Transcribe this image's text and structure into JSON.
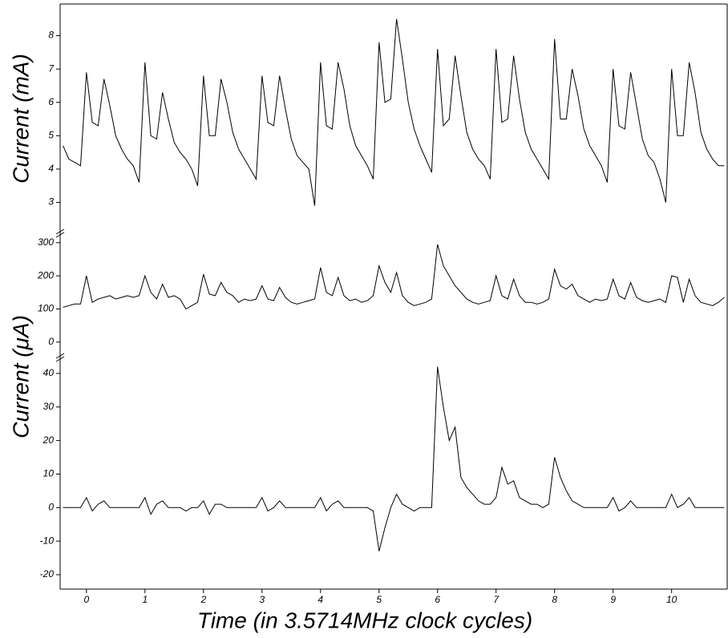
{
  "chart_data": [
    {
      "type": "line",
      "ylabel": "Current (mA)",
      "xlim": [
        -0.45,
        10.95
      ],
      "ylim": [
        2.1,
        8.95
      ],
      "yticks": [
        3,
        4,
        5,
        6,
        7,
        8
      ],
      "x": [
        -0.4,
        -0.3,
        -0.2,
        -0.1,
        0,
        0.1,
        0.2,
        0.3,
        0.4,
        0.5,
        0.6,
        0.7,
        0.8,
        0.9,
        1,
        1.1,
        1.2,
        1.3,
        1.4,
        1.5,
        1.6,
        1.7,
        1.8,
        1.9,
        2,
        2.1,
        2.2,
        2.3,
        2.4,
        2.5,
        2.6,
        2.7,
        2.8,
        2.9,
        3,
        3.1,
        3.2,
        3.3,
        3.4,
        3.5,
        3.6,
        3.7,
        3.8,
        3.9,
        4,
        4.1,
        4.2,
        4.3,
        4.4,
        4.5,
        4.6,
        4.7,
        4.8,
        4.9,
        5,
        5.1,
        5.2,
        5.3,
        5.4,
        5.5,
        5.6,
        5.7,
        5.8,
        5.9,
        6,
        6.1,
        6.2,
        6.3,
        6.4,
        6.5,
        6.6,
        6.7,
        6.8,
        6.9,
        7,
        7.1,
        7.2,
        7.3,
        7.4,
        7.5,
        7.6,
        7.7,
        7.8,
        7.9,
        8,
        8.1,
        8.2,
        8.3,
        8.4,
        8.5,
        8.6,
        8.7,
        8.8,
        8.9,
        9,
        9.1,
        9.2,
        9.3,
        9.4,
        9.5,
        9.6,
        9.7,
        9.8,
        9.9,
        10,
        10.1,
        10.2,
        10.3,
        10.4,
        10.5,
        10.6,
        10.7,
        10.8,
        10.9
      ],
      "series": [
        {
          "color": "#000000",
          "values": [
            4.7,
            4.3,
            4.2,
            4.1,
            6.9,
            5.4,
            5.3,
            6.7,
            5.9,
            5.0,
            4.6,
            4.3,
            4.1,
            3.6,
            7.2,
            5.0,
            4.9,
            6.3,
            5.5,
            4.8,
            4.5,
            4.3,
            4.0,
            3.5,
            6.8,
            5.0,
            5.0,
            6.7,
            6.0,
            5.1,
            4.6,
            4.3,
            4.0,
            3.7,
            6.8,
            5.4,
            5.3,
            6.8,
            5.8,
            4.9,
            4.4,
            4.2,
            4.0,
            2.9,
            7.2,
            5.3,
            5.2,
            7.2,
            6.4,
            5.3,
            4.7,
            4.4,
            4.1,
            3.7,
            7.8,
            6.0,
            6.1,
            8.5,
            7.3,
            6.0,
            5.2,
            4.7,
            4.3,
            3.9,
            7.6,
            5.3,
            5.5,
            7.4,
            6.2,
            5.1,
            4.6,
            4.3,
            4.1,
            3.7,
            7.6,
            5.4,
            5.5,
            7.4,
            6.1,
            5.1,
            4.6,
            4.3,
            4.0,
            3.7,
            7.9,
            5.5,
            5.5,
            7.0,
            6.2,
            5.2,
            4.7,
            4.4,
            4.1,
            3.6,
            7.0,
            5.3,
            5.2,
            6.9,
            5.9,
            4.9,
            4.4,
            4.2,
            3.7,
            3.0,
            7.0,
            5.0,
            5.0,
            7.2,
            6.3,
            5.1,
            4.6,
            4.3,
            4.1,
            4.1
          ]
        }
      ]
    },
    {
      "type": "line",
      "ylabel": "Current (μA)",
      "xlim": [
        -0.45,
        10.95
      ],
      "ylim": [
        -44,
        331
      ],
      "yticks": [
        0,
        100,
        200,
        300
      ],
      "x": [
        -0.4,
        -0.3,
        -0.2,
        -0.1,
        0,
        0.1,
        0.2,
        0.3,
        0.4,
        0.5,
        0.6,
        0.7,
        0.8,
        0.9,
        1,
        1.1,
        1.2,
        1.3,
        1.4,
        1.5,
        1.6,
        1.7,
        1.8,
        1.9,
        2,
        2.1,
        2.2,
        2.3,
        2.4,
        2.5,
        2.6,
        2.7,
        2.8,
        2.9,
        3,
        3.1,
        3.2,
        3.3,
        3.4,
        3.5,
        3.6,
        3.7,
        3.8,
        3.9,
        4,
        4.1,
        4.2,
        4.3,
        4.4,
        4.5,
        4.6,
        4.7,
        4.8,
        4.9,
        5,
        5.1,
        5.2,
        5.3,
        5.4,
        5.5,
        5.6,
        5.7,
        5.8,
        5.9,
        6,
        6.1,
        6.2,
        6.3,
        6.4,
        6.5,
        6.6,
        6.7,
        6.8,
        6.9,
        7,
        7.1,
        7.2,
        7.3,
        7.4,
        7.5,
        7.6,
        7.7,
        7.8,
        7.9,
        8,
        8.1,
        8.2,
        8.3,
        8.4,
        8.5,
        8.6,
        8.7,
        8.8,
        8.9,
        9,
        9.1,
        9.2,
        9.3,
        9.4,
        9.5,
        9.6,
        9.7,
        9.8,
        9.9,
        10,
        10.1,
        10.2,
        10.3,
        10.4,
        10.5,
        10.6,
        10.7,
        10.8,
        10.9
      ],
      "series": [
        {
          "color": "#000000",
          "values": [
            105,
            110,
            115,
            115,
            200,
            120,
            130,
            135,
            140,
            130,
            135,
            140,
            135,
            140,
            200,
            150,
            130,
            175,
            135,
            140,
            130,
            100,
            110,
            120,
            205,
            145,
            140,
            180,
            150,
            140,
            120,
            130,
            125,
            130,
            170,
            130,
            125,
            165,
            135,
            120,
            115,
            120,
            125,
            130,
            225,
            150,
            140,
            195,
            140,
            125,
            130,
            120,
            125,
            140,
            230,
            180,
            150,
            210,
            140,
            120,
            110,
            115,
            120,
            130,
            295,
            230,
            200,
            170,
            150,
            130,
            120,
            115,
            120,
            125,
            200,
            140,
            130,
            190,
            140,
            120,
            120,
            115,
            120,
            130,
            220,
            170,
            160,
            175,
            140,
            130,
            120,
            130,
            125,
            130,
            190,
            140,
            130,
            180,
            135,
            125,
            120,
            125,
            130,
            120,
            200,
            195,
            120,
            190,
            140,
            120,
            115,
            110,
            120,
            135
          ]
        }
      ]
    },
    {
      "type": "line",
      "xlabel": "Time (in 3.5714MHz clock cycles)",
      "xlim": [
        -0.45,
        10.95
      ],
      "xticks": [
        0,
        1,
        2,
        3,
        4,
        5,
        6,
        7,
        8,
        9,
        10
      ],
      "ylim": [
        -24.3,
        45
      ],
      "yticks": [
        -20,
        -10,
        0,
        10,
        20,
        30,
        40
      ],
      "x": [
        -0.4,
        -0.3,
        -0.2,
        -0.1,
        0,
        0.1,
        0.2,
        0.3,
        0.4,
        0.5,
        0.6,
        0.7,
        0.8,
        0.9,
        1,
        1.1,
        1.2,
        1.3,
        1.4,
        1.5,
        1.6,
        1.7,
        1.8,
        1.9,
        2,
        2.1,
        2.2,
        2.3,
        2.4,
        2.5,
        2.6,
        2.7,
        2.8,
        2.9,
        3,
        3.1,
        3.2,
        3.3,
        3.4,
        3.5,
        3.6,
        3.7,
        3.8,
        3.9,
        4,
        4.1,
        4.2,
        4.3,
        4.4,
        4.5,
        4.6,
        4.7,
        4.8,
        4.9,
        5,
        5.1,
        5.2,
        5.3,
        5.4,
        5.5,
        5.6,
        5.7,
        5.8,
        5.9,
        6,
        6.1,
        6.2,
        6.3,
        6.4,
        6.5,
        6.6,
        6.7,
        6.8,
        6.9,
        7,
        7.1,
        7.2,
        7.3,
        7.4,
        7.5,
        7.6,
        7.7,
        7.8,
        7.9,
        8,
        8.1,
        8.2,
        8.3,
        8.4,
        8.5,
        8.6,
        8.7,
        8.8,
        8.9,
        9,
        9.1,
        9.2,
        9.3,
        9.4,
        9.5,
        9.6,
        9.7,
        9.8,
        9.9,
        10,
        10.1,
        10.2,
        10.3,
        10.4,
        10.5,
        10.6,
        10.7,
        10.8,
        10.9
      ],
      "series": [
        {
          "color": "#000000",
          "values": [
            0,
            0,
            0,
            0,
            3,
            -1,
            1,
            2,
            0,
            0,
            0,
            0,
            0,
            0,
            3,
            -2,
            1,
            2,
            0,
            0,
            0,
            -1,
            0,
            0,
            2,
            -2,
            1,
            1,
            0,
            0,
            0,
            0,
            0,
            0,
            3,
            -1,
            0,
            2,
            0,
            0,
            0,
            0,
            0,
            0,
            3,
            -1,
            1,
            2,
            0,
            0,
            0,
            0,
            0,
            -1,
            -13,
            -6,
            0,
            4,
            1,
            0,
            -1,
            0,
            0,
            0,
            42,
            30,
            20,
            24,
            9,
            6,
            4,
            2,
            1,
            1,
            3,
            12,
            7,
            8,
            3,
            2,
            1,
            1,
            0,
            1,
            15,
            9,
            5,
            2,
            1,
            0,
            0,
            0,
            0,
            0,
            3,
            -1,
            0,
            2,
            0,
            0,
            0,
            0,
            0,
            0,
            4,
            0,
            1,
            3,
            0,
            0,
            0,
            0,
            0,
            0
          ]
        }
      ]
    }
  ]
}
